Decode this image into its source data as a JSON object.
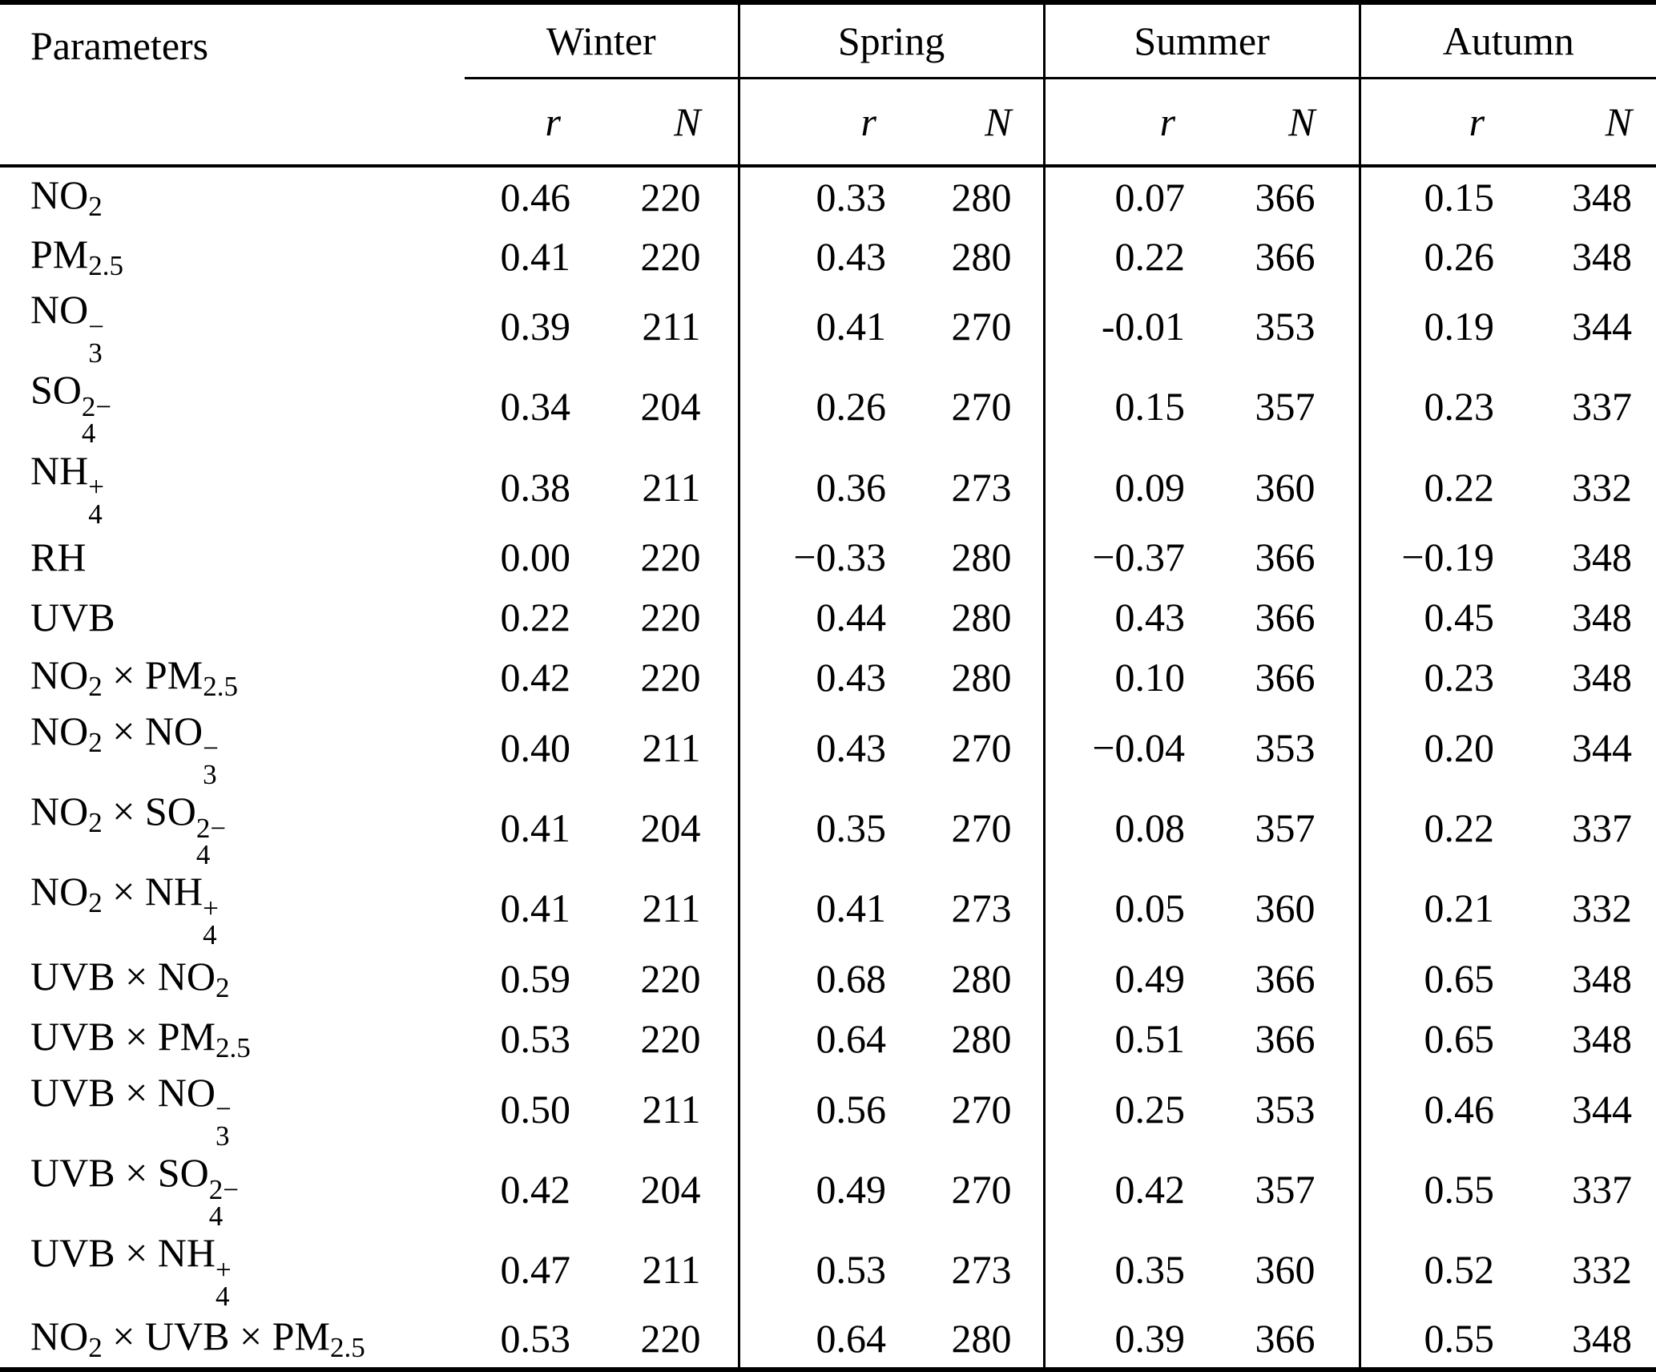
{
  "table": {
    "param_header": "Parameters",
    "seasons": [
      "Winter",
      "Spring",
      "Summer",
      "Autumn"
    ],
    "r_label": "r",
    "n_label": "N",
    "rows": [
      {
        "label": [
          {
            "t": "NO"
          },
          {
            "sub": "2"
          }
        ],
        "values": [
          "0.46",
          "220",
          "0.33",
          "280",
          "0.07",
          "366",
          "0.15",
          "348"
        ]
      },
      {
        "label": [
          {
            "t": "PM"
          },
          {
            "sub": "2.5"
          }
        ],
        "values": [
          "0.41",
          "220",
          "0.43",
          "280",
          "0.22",
          "366",
          "0.26",
          "348"
        ]
      },
      {
        "label": [
          {
            "t": "NO"
          },
          {
            "sub": "3",
            "sup": "−"
          }
        ],
        "values": [
          "0.39",
          "211",
          "0.41",
          "270",
          "-0.01",
          "353",
          "0.19",
          "344"
        ]
      },
      {
        "label": [
          {
            "t": "SO"
          },
          {
            "sub": "4",
            "sup": "2−"
          }
        ],
        "values": [
          "0.34",
          "204",
          "0.26",
          "270",
          "0.15",
          "357",
          "0.23",
          "337"
        ]
      },
      {
        "label": [
          {
            "t": "NH"
          },
          {
            "sub": "4",
            "sup": "+"
          }
        ],
        "values": [
          "0.38",
          "211",
          "0.36",
          "273",
          "0.09",
          "360",
          "0.22",
          "332"
        ]
      },
      {
        "label": [
          {
            "t": "RH"
          }
        ],
        "values": [
          "0.00",
          "220",
          "−0.33",
          "280",
          "−0.37",
          "366",
          "−0.19",
          "348"
        ]
      },
      {
        "label": [
          {
            "t": "UVB"
          }
        ],
        "values": [
          "0.22",
          "220",
          "0.44",
          "280",
          "0.43",
          "366",
          "0.45",
          "348"
        ]
      },
      {
        "label": [
          {
            "t": "NO"
          },
          {
            "sub": "2"
          },
          {
            "t": " × PM"
          },
          {
            "sub": "2.5"
          }
        ],
        "values": [
          "0.42",
          "220",
          "0.43",
          "280",
          "0.10",
          "366",
          "0.23",
          "348"
        ]
      },
      {
        "label": [
          {
            "t": "NO"
          },
          {
            "sub": "2"
          },
          {
            "t": " × NO"
          },
          {
            "sub": "3",
            "sup": "−"
          }
        ],
        "values": [
          "0.40",
          "211",
          "0.43",
          "270",
          "−0.04",
          "353",
          "0.20",
          "344"
        ]
      },
      {
        "label": [
          {
            "t": "NO"
          },
          {
            "sub": "2"
          },
          {
            "t": " × SO"
          },
          {
            "sub": "4",
            "sup": "2−"
          }
        ],
        "values": [
          "0.41",
          "204",
          "0.35",
          "270",
          "0.08",
          "357",
          "0.22",
          "337"
        ]
      },
      {
        "label": [
          {
            "t": "NO"
          },
          {
            "sub": "2"
          },
          {
            "t": " × NH"
          },
          {
            "sub": "4",
            "sup": "+"
          }
        ],
        "values": [
          "0.41",
          "211",
          "0.41",
          "273",
          "0.05",
          "360",
          "0.21",
          "332"
        ]
      },
      {
        "label": [
          {
            "t": "UVB × NO"
          },
          {
            "sub": "2"
          }
        ],
        "values": [
          "0.59",
          "220",
          "0.68",
          "280",
          "0.49",
          "366",
          "0.65",
          "348"
        ]
      },
      {
        "label": [
          {
            "t": "UVB × PM"
          },
          {
            "sub": "2.5"
          }
        ],
        "values": [
          "0.53",
          "220",
          "0.64",
          "280",
          "0.51",
          "366",
          "0.65",
          "348"
        ]
      },
      {
        "label": [
          {
            "t": "UVB × NO"
          },
          {
            "sub": "3",
            "sup": "−"
          }
        ],
        "values": [
          "0.50",
          "211",
          "0.56",
          "270",
          "0.25",
          "353",
          "0.46",
          "344"
        ]
      },
      {
        "label": [
          {
            "t": "UVB × SO"
          },
          {
            "sub": "4",
            "sup": "2−"
          }
        ],
        "values": [
          "0.42",
          "204",
          "0.49",
          "270",
          "0.42",
          "357",
          "0.55",
          "337"
        ]
      },
      {
        "label": [
          {
            "t": "UVB × NH"
          },
          {
            "sub": "4",
            "sup": "+"
          }
        ],
        "values": [
          "0.47",
          "211",
          "0.53",
          "273",
          "0.35",
          "360",
          "0.52",
          "332"
        ]
      },
      {
        "label": [
          {
            "t": "NO"
          },
          {
            "sub": "2"
          },
          {
            "t": " × UVB × PM"
          },
          {
            "sub": "2.5"
          }
        ],
        "values": [
          "0.53",
          "220",
          "0.64",
          "280",
          "0.39",
          "366",
          "0.55",
          "348"
        ]
      }
    ]
  }
}
